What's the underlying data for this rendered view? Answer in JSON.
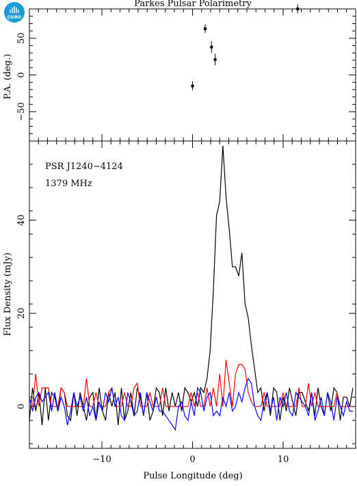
{
  "logo": {
    "text": "CSIRO",
    "color": "#1b9bd7"
  },
  "chart_data": [
    {
      "type": "scatter",
      "title": "Parkes Pulsar Polarimetry",
      "ylabel": "P.A. (deg.)",
      "xlim": [
        -18,
        18
      ],
      "ylim": [
        -90,
        90
      ],
      "yticks": [
        -50,
        0,
        50
      ],
      "points": [
        {
          "x": 0.0,
          "y": -15,
          "err": 6
        },
        {
          "x": 1.4,
          "y": 63,
          "err": 6
        },
        {
          "x": 2.1,
          "y": 38,
          "err": 8
        },
        {
          "x": 2.5,
          "y": 21,
          "err": 8
        },
        {
          "x": 11.6,
          "y": 90,
          "err": 6
        }
      ]
    },
    {
      "type": "line",
      "xlabel": "Pulse Longitude (deg)",
      "ylabel": "Flux Density (mJy)",
      "xlim": [
        -18,
        18
      ],
      "ylim": [
        -9,
        57
      ],
      "xticks": [
        -10,
        0,
        10
      ],
      "yticks": [
        0,
        20,
        40
      ],
      "annotations": [
        "PSR J1240−4124",
        "1379 MHz"
      ],
      "x_start": -18,
      "x_step": 0.35,
      "series": [
        {
          "color": "#000000",
          "values": [
            -3,
            4,
            -1,
            3,
            -4,
            4,
            -3,
            3,
            2,
            -1,
            4,
            3,
            -2,
            -3,
            3,
            -2,
            3,
            0,
            -3,
            2,
            3,
            -3,
            4,
            -1,
            -3,
            3,
            0,
            3,
            -4,
            4,
            -3,
            -1,
            3,
            -2,
            4,
            2,
            -2,
            3,
            -3,
            -1,
            4,
            3,
            -2,
            4,
            -1,
            3,
            0,
            3,
            -1,
            4,
            3,
            1,
            3,
            0,
            4,
            3,
            6,
            12,
            25,
            41,
            44,
            56,
            45,
            38,
            30,
            30,
            28,
            33,
            22,
            19,
            13,
            8,
            3,
            4,
            -1,
            3,
            -2,
            4,
            3,
            -3,
            2,
            -1,
            4,
            1,
            -2,
            3,
            3,
            1,
            -1,
            3,
            -2,
            4,
            0,
            -2,
            3,
            -1,
            4,
            3,
            -3,
            2,
            2,
            0,
            4,
            -1,
            3,
            -2,
            3,
            -1,
            3,
            0,
            2,
            -1,
            3,
            -2
          ]
        },
        {
          "color": "#ff0000",
          "values": [
            0,
            0,
            7,
            0,
            4,
            4,
            4,
            0,
            0,
            0,
            4,
            3,
            0,
            0,
            0,
            0,
            0,
            0,
            6,
            0,
            0,
            3,
            0,
            0,
            0,
            3,
            4,
            0,
            0,
            0,
            3,
            0,
            0,
            4,
            5,
            0,
            0,
            0,
            3,
            0,
            0,
            0,
            4,
            0,
            0,
            0,
            0,
            0,
            0,
            0,
            0,
            3,
            0,
            3,
            0,
            0,
            4,
            0,
            4,
            0,
            7,
            0,
            10,
            5,
            0,
            7,
            9,
            9,
            8,
            3,
            1,
            0,
            0,
            0,
            3,
            0,
            0,
            0,
            0,
            0,
            3,
            0,
            0,
            0,
            0,
            4,
            0,
            0,
            5,
            0,
            3,
            0,
            0,
            0,
            0,
            0,
            0,
            3,
            0,
            0,
            0,
            0,
            0,
            0,
            0,
            0,
            0,
            0,
            0,
            0,
            0,
            0,
            0,
            0,
            0
          ]
        },
        {
          "color": "#0000ff",
          "values": [
            2,
            -1,
            2,
            3,
            1,
            2,
            3,
            -1,
            3,
            -1,
            2,
            0,
            -4,
            -1,
            3,
            0,
            2,
            -1,
            2,
            -2,
            0,
            -3,
            1,
            -1,
            3,
            1,
            4,
            0,
            2,
            -2,
            -3,
            3,
            1,
            -2,
            -1,
            3,
            -2,
            3,
            1,
            -1,
            2,
            -1,
            -1,
            -2,
            -3,
            -4,
            -5,
            0,
            1,
            -2,
            -3,
            1,
            -2,
            4,
            3,
            -1,
            2,
            3,
            -2,
            -1,
            -2,
            2,
            0,
            3,
            -1,
            0,
            3,
            1,
            4,
            6,
            5,
            0,
            -2,
            -3,
            1,
            3,
            -1,
            2,
            -3,
            2,
            0,
            3,
            -1,
            -2,
            3,
            2,
            1,
            0,
            -2,
            3,
            -3,
            -1,
            2,
            -2,
            3,
            1,
            -3,
            2,
            0,
            -2,
            1,
            -1,
            -1,
            2,
            -2,
            2,
            -3,
            1,
            -1,
            -1,
            -2,
            3,
            2,
            0,
            1
          ]
        }
      ]
    }
  ]
}
